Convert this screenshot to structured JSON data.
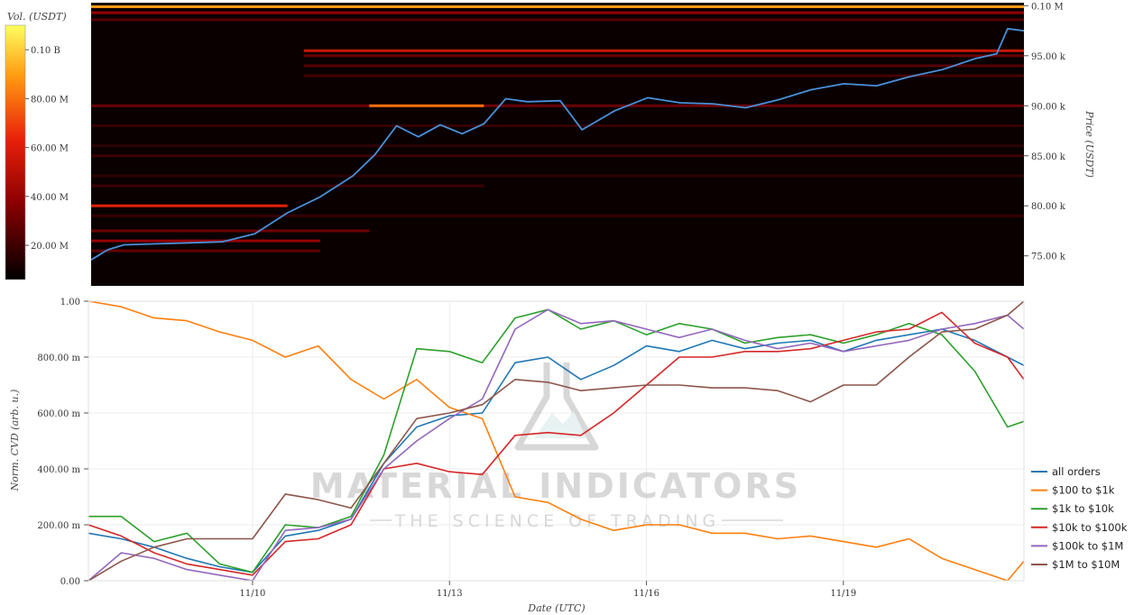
{
  "chart_data": [
    {
      "type": "heatmap",
      "title": "",
      "xlabel": "",
      "ylabel": "Price (USDT)",
      "colorbar": {
        "label": "Vol. (USDT)",
        "ticks": [
          "20.00 M",
          "40.00 M",
          "60.00 M",
          "80.00 M",
          "0.10 B"
        ],
        "tick_values": [
          20,
          40,
          60,
          80,
          100
        ],
        "range_millions": [
          6,
          110
        ],
        "colormap": "hot (black-red-orange-yellow-white)"
      },
      "y_ticks": [
        "75.00 k",
        "80.00 k",
        "85.00 k",
        "90.00 k",
        "95.00 k",
        "0.10 M"
      ],
      "y_tick_values": [
        75000,
        80000,
        85000,
        90000,
        95000,
        100000
      ],
      "ylim": [
        72000,
        100300
      ],
      "xlim": [
        "2024-11-07T12:00",
        "2024-11-21T18:00"
      ],
      "price_line": {
        "color": "#4a90d9",
        "x": [
          "2024-11-07T12:00",
          "2024-11-07T18:00",
          "2024-11-08T00:00",
          "2024-11-08T12:00",
          "2024-11-09T00:00",
          "2024-11-09T12:00",
          "2024-11-10T00:00",
          "2024-11-10T12:00",
          "2024-11-11T00:00",
          "2024-11-11T12:00",
          "2024-11-11T20:00",
          "2024-11-12T04:00",
          "2024-11-12T12:00",
          "2024-11-12T20:00",
          "2024-11-13T04:00",
          "2024-11-13T12:00",
          "2024-11-13T20:00",
          "2024-11-14T04:00",
          "2024-11-14T16:00",
          "2024-11-15T00:00",
          "2024-11-15T12:00",
          "2024-11-16T00:00",
          "2024-11-16T12:00",
          "2024-11-17T00:00",
          "2024-11-17T12:00",
          "2024-11-18T00:00",
          "2024-11-18T12:00",
          "2024-11-19T00:00",
          "2024-11-19T12:00",
          "2024-11-20T00:00",
          "2024-11-20T12:00",
          "2024-11-21T00:00",
          "2024-11-21T08:00",
          "2024-11-21T12:00",
          "2024-11-21T18:00"
        ],
        "y": [
          74600,
          75600,
          76100,
          76200,
          76300,
          76400,
          77200,
          79300,
          80900,
          83000,
          85100,
          88000,
          86900,
          88100,
          87200,
          88200,
          90700,
          90400,
          90500,
          87600,
          89500,
          90800,
          90300,
          90200,
          89800,
          90600,
          91600,
          92200,
          92000,
          92900,
          93600,
          94700,
          95200,
          97700,
          97500
        ]
      },
      "levels": [
        {
          "price": 99900,
          "from": "2024-11-07T12:00",
          "to": "2024-11-21T18:00",
          "intensity_millions": 90
        },
        {
          "price": 99300,
          "from": "2024-11-07T12:00",
          "to": "2024-11-21T18:00",
          "intensity_millions": 40
        },
        {
          "price": 98600,
          "from": "2024-11-07T12:00",
          "to": "2024-11-21T18:00",
          "intensity_millions": 25
        },
        {
          "price": 95500,
          "from": "2024-11-10T18:00",
          "to": "2024-11-21T18:00",
          "intensity_millions": 55
        },
        {
          "price": 95000,
          "from": "2024-11-10T18:00",
          "to": "2024-11-21T18:00",
          "intensity_millions": 30
        },
        {
          "price": 94000,
          "from": "2024-11-10T18:00",
          "to": "2024-11-21T18:00",
          "intensity_millions": 25
        },
        {
          "price": 93000,
          "from": "2024-11-10T18:00",
          "to": "2024-11-21T18:00",
          "intensity_millions": 22
        },
        {
          "price": 90000,
          "from": "2024-11-07T12:00",
          "to": "2024-11-21T18:00",
          "intensity_millions": 30
        },
        {
          "price": 90000,
          "from": "2024-11-11T18:00",
          "to": "2024-11-13T12:00",
          "intensity_millions": 80
        },
        {
          "price": 88000,
          "from": "2024-11-07T12:00",
          "to": "2024-11-21T18:00",
          "intensity_millions": 18
        },
        {
          "price": 86000,
          "from": "2024-11-07T12:00",
          "to": "2024-11-21T18:00",
          "intensity_millions": 16
        },
        {
          "price": 85000,
          "from": "2024-11-07T12:00",
          "to": "2024-11-21T18:00",
          "intensity_millions": 20
        },
        {
          "price": 83000,
          "from": "2024-11-07T12:00",
          "to": "2024-11-21T18:00",
          "intensity_millions": 16
        },
        {
          "price": 82000,
          "from": "2024-11-07T12:00",
          "to": "2024-11-13T12:00",
          "intensity_millions": 20
        },
        {
          "price": 80000,
          "from": "2024-11-07T12:00",
          "to": "2024-11-10T12:00",
          "intensity_millions": 62
        },
        {
          "price": 79000,
          "from": "2024-11-07T12:00",
          "to": "2024-11-21T18:00",
          "intensity_millions": 18
        },
        {
          "price": 77500,
          "from": "2024-11-07T12:00",
          "to": "2024-11-11T18:00",
          "intensity_millions": 30
        },
        {
          "price": 76500,
          "from": "2024-11-07T12:00",
          "to": "2024-11-11T00:00",
          "intensity_millions": 40
        },
        {
          "price": 75500,
          "from": "2024-11-07T12:00",
          "to": "2024-11-11T00:00",
          "intensity_millions": 28
        }
      ]
    },
    {
      "type": "line",
      "title": "",
      "xlabel": "Date (UTC)",
      "ylabel": "Norm. CVD (arb. u.)",
      "x_ticks": [
        "11/10",
        "11/13",
        "11/16",
        "11/19"
      ],
      "x_tick_values": [
        "2024-11-10",
        "2024-11-13",
        "2024-11-16",
        "2024-11-19"
      ],
      "y_ticks": [
        "0.00",
        "200.00 m",
        "400.00 m",
        "600.00 m",
        "800.00 m",
        "1.00"
      ],
      "y_tick_values": [
        0,
        0.2,
        0.4,
        0.6,
        0.8,
        1.0
      ],
      "ylim": [
        0,
        1.0
      ],
      "xlim": [
        "2024-11-07T12:00",
        "2024-11-21T18:00"
      ],
      "grid": true,
      "legend_position": "bottom-right",
      "x": [
        "2024-11-07T12:00",
        "2024-11-08T00:00",
        "2024-11-08T12:00",
        "2024-11-09T00:00",
        "2024-11-09T12:00",
        "2024-11-10T00:00",
        "2024-11-10T12:00",
        "2024-11-11T00:00",
        "2024-11-11T12:00",
        "2024-11-12T00:00",
        "2024-11-12T12:00",
        "2024-11-13T00:00",
        "2024-11-13T12:00",
        "2024-11-14T00:00",
        "2024-11-14T12:00",
        "2024-11-15T00:00",
        "2024-11-15T12:00",
        "2024-11-16T00:00",
        "2024-11-16T12:00",
        "2024-11-17T00:00",
        "2024-11-17T12:00",
        "2024-11-18T00:00",
        "2024-11-18T12:00",
        "2024-11-19T00:00",
        "2024-11-19T12:00",
        "2024-11-20T00:00",
        "2024-11-20T12:00",
        "2024-11-21T00:00",
        "2024-11-21T12:00",
        "2024-11-21T18:00"
      ],
      "series": [
        {
          "name": "all orders",
          "color": "#1f77b4",
          "values": [
            0.17,
            0.15,
            0.12,
            0.08,
            0.05,
            0.03,
            0.16,
            0.18,
            0.22,
            0.42,
            0.55,
            0.59,
            0.6,
            0.78,
            0.8,
            0.72,
            0.77,
            0.84,
            0.82,
            0.86,
            0.83,
            0.85,
            0.86,
            0.82,
            0.86,
            0.88,
            0.9,
            0.86,
            0.8,
            0.77
          ]
        },
        {
          "name": "$100 to $1k",
          "color": "#ff7f0e",
          "values": [
            1.0,
            0.98,
            0.94,
            0.93,
            0.89,
            0.86,
            0.8,
            0.84,
            0.72,
            0.65,
            0.72,
            0.62,
            0.58,
            0.3,
            0.28,
            0.22,
            0.18,
            0.2,
            0.2,
            0.17,
            0.17,
            0.15,
            0.16,
            0.14,
            0.12,
            0.15,
            0.08,
            0.04,
            0.0,
            0.07
          ]
        },
        {
          "name": "$1k to $10k",
          "color": "#2ca02c",
          "values": [
            0.23,
            0.23,
            0.14,
            0.17,
            0.06,
            0.03,
            0.2,
            0.19,
            0.23,
            0.45,
            0.83,
            0.82,
            0.78,
            0.94,
            0.97,
            0.9,
            0.93,
            0.88,
            0.92,
            0.9,
            0.85,
            0.87,
            0.88,
            0.85,
            0.88,
            0.92,
            0.88,
            0.75,
            0.55,
            0.57
          ]
        },
        {
          "name": "$10k to $100k",
          "color": "#d62728",
          "values": [
            0.2,
            0.16,
            0.1,
            0.06,
            0.04,
            0.02,
            0.14,
            0.15,
            0.2,
            0.4,
            0.42,
            0.39,
            0.38,
            0.52,
            0.53,
            0.52,
            0.6,
            0.7,
            0.8,
            0.8,
            0.82,
            0.82,
            0.83,
            0.86,
            0.89,
            0.9,
            0.96,
            0.85,
            0.8,
            0.72
          ]
        },
        {
          "name": "$100k to $1M",
          "color": "#9467bd",
          "values": [
            0.0,
            0.1,
            0.08,
            0.04,
            0.02,
            0.0,
            0.18,
            0.19,
            0.22,
            0.4,
            0.5,
            0.58,
            0.65,
            0.9,
            0.97,
            0.92,
            0.93,
            0.9,
            0.87,
            0.9,
            0.86,
            0.83,
            0.85,
            0.82,
            0.84,
            0.86,
            0.9,
            0.92,
            0.95,
            0.9
          ]
        },
        {
          "name": "$1M to $10M",
          "color": "#8c564b",
          "values": [
            0.0,
            0.07,
            0.12,
            0.15,
            0.15,
            0.15,
            0.31,
            0.29,
            0.26,
            0.42,
            0.58,
            0.6,
            0.63,
            0.72,
            0.71,
            0.68,
            0.69,
            0.7,
            0.7,
            0.69,
            0.69,
            0.68,
            0.64,
            0.7,
            0.7,
            0.8,
            0.89,
            0.9,
            0.95,
            1.0
          ]
        }
      ]
    }
  ],
  "watermark": {
    "brand": "MATERIAL INDICATORS",
    "tagline": "THE SCIENCE OF TRADING"
  }
}
